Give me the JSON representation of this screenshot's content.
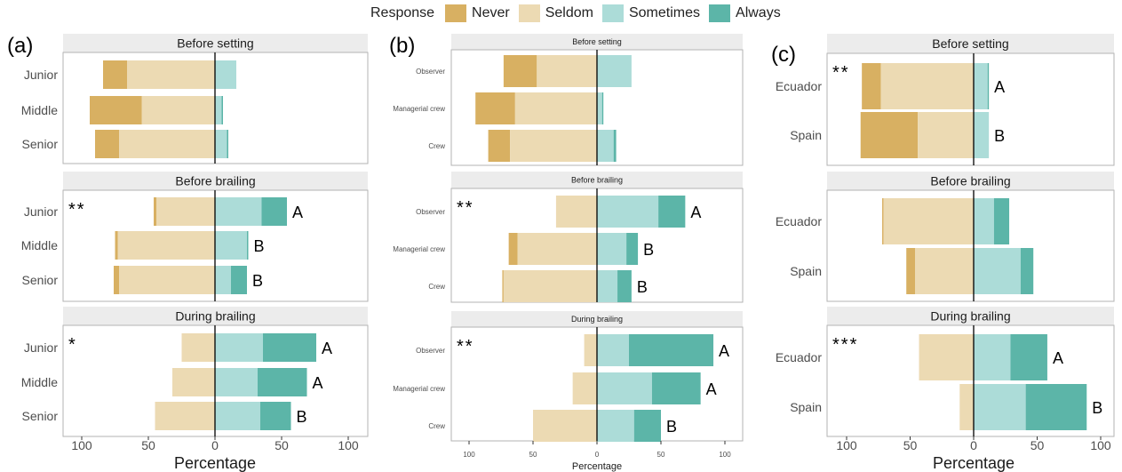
{
  "legend": {
    "title": "Response",
    "items": [
      {
        "label": "Never",
        "color": "#d8b062"
      },
      {
        "label": "Seldom",
        "color": "#ecdab3"
      },
      {
        "label": "Sometimes",
        "color": "#acdcd8"
      },
      {
        "label": "Always",
        "color": "#5cb5a8"
      }
    ]
  },
  "chart_data": [
    {
      "type": "bar",
      "panel": "(a)",
      "xlabel": "Percentage",
      "xlim": [
        -115,
        107
      ],
      "xticks": [
        100,
        50,
        0,
        50,
        100
      ],
      "facets": [
        {
          "strip": "Before setting",
          "significance": "",
          "rows": [
            {
              "label": "Junior",
              "never": 18,
              "seldom": 66,
              "sometimes": 16,
              "always": 0,
              "letter": ""
            },
            {
              "label": "Middle",
              "never": 39,
              "seldom": 55,
              "sometimes": 5,
              "always": 1,
              "letter": ""
            },
            {
              "label": "Senior",
              "never": 18,
              "seldom": 72,
              "sometimes": 9,
              "always": 1,
              "letter": ""
            }
          ]
        },
        {
          "strip": "Before brailing",
          "significance": "**",
          "rows": [
            {
              "label": "Junior",
              "never": 2,
              "seldom": 44,
              "sometimes": 35,
              "always": 19,
              "letter": "A"
            },
            {
              "label": "Middle",
              "never": 2,
              "seldom": 73,
              "sometimes": 24,
              "always": 1,
              "letter": "B"
            },
            {
              "label": "Senior",
              "never": 4,
              "seldom": 72,
              "sometimes": 12,
              "always": 12,
              "letter": "B"
            }
          ]
        },
        {
          "strip": "During brailing",
          "significance": "*",
          "rows": [
            {
              "label": "Junior",
              "never": 0,
              "seldom": 25,
              "sometimes": 36,
              "always": 40,
              "letter": "A"
            },
            {
              "label": "Middle",
              "never": 0,
              "seldom": 32,
              "sometimes": 32,
              "always": 37,
              "letter": "A"
            },
            {
              "label": "Senior",
              "never": 0,
              "seldom": 45,
              "sometimes": 34,
              "always": 23,
              "letter": "B"
            }
          ]
        }
      ]
    },
    {
      "type": "bar",
      "panel": "(b)",
      "xlabel": "Percentage",
      "xlim": [
        -115,
        107
      ],
      "xticks": [
        100,
        50,
        0,
        50,
        100
      ],
      "facets": [
        {
          "strip": "Before setting",
          "significance": "",
          "rows": [
            {
              "label": "Observer",
              "never": 26,
              "seldom": 47,
              "sometimes": 27,
              "always": 0,
              "letter": ""
            },
            {
              "label": "Managerial crew",
              "never": 31,
              "seldom": 64,
              "sometimes": 4,
              "always": 1,
              "letter": ""
            },
            {
              "label": "Crew",
              "never": 17,
              "seldom": 68,
              "sometimes": 13,
              "always": 2,
              "letter": ""
            }
          ]
        },
        {
          "strip": "Before brailing",
          "significance": "**",
          "rows": [
            {
              "label": "Observer",
              "never": 0,
              "seldom": 32,
              "sometimes": 48,
              "always": 21,
              "letter": "A"
            },
            {
              "label": "Managerial crew",
              "never": 7,
              "seldom": 62,
              "sometimes": 23,
              "always": 9,
              "letter": "B"
            },
            {
              "label": "Crew",
              "never": 1,
              "seldom": 73,
              "sometimes": 16,
              "always": 11,
              "letter": "B"
            }
          ]
        },
        {
          "strip": "During brailing",
          "significance": "**",
          "rows": [
            {
              "label": "Observer",
              "never": 0,
              "seldom": 10,
              "sometimes": 25,
              "always": 66,
              "letter": "A"
            },
            {
              "label": "Managerial crew",
              "never": 0,
              "seldom": 19,
              "sometimes": 43,
              "always": 38,
              "letter": "A"
            },
            {
              "label": "Crew",
              "never": 0,
              "seldom": 50,
              "sometimes": 29,
              "always": 21,
              "letter": "B"
            }
          ]
        }
      ]
    },
    {
      "type": "bar",
      "panel": "(c)",
      "xlabel": "Percentage",
      "xlim": [
        -115,
        107
      ],
      "xticks": [
        100,
        50,
        0,
        50,
        100
      ],
      "facets": [
        {
          "strip": "Before setting",
          "significance": "**",
          "rows": [
            {
              "label": "Ecuador",
              "never": 15,
              "seldom": 73,
              "sometimes": 11,
              "always": 1,
              "letter": "A"
            },
            {
              "label": "Spain",
              "never": 45,
              "seldom": 44,
              "sometimes": 12,
              "always": 0,
              "letter": "B"
            }
          ]
        },
        {
          "strip": "Before brailing",
          "significance": "",
          "rows": [
            {
              "label": "Ecuador",
              "never": 1,
              "seldom": 71,
              "sometimes": 16,
              "always": 12,
              "letter": ""
            },
            {
              "label": "Spain",
              "never": 7,
              "seldom": 46,
              "sometimes": 37,
              "always": 10,
              "letter": ""
            }
          ]
        },
        {
          "strip": "During brailing",
          "significance": "***",
          "rows": [
            {
              "label": "Ecuador",
              "never": 0,
              "seldom": 43,
              "sometimes": 29,
              "always": 29,
              "letter": "A"
            },
            {
              "label": "Spain",
              "never": 0,
              "seldom": 11,
              "sometimes": 41,
              "always": 48,
              "letter": "B"
            }
          ]
        }
      ]
    }
  ]
}
